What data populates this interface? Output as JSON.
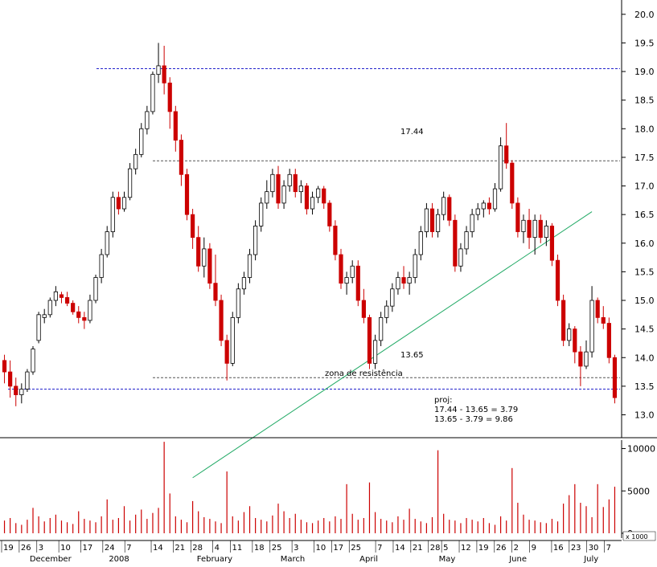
{
  "chart_data": [
    {
      "type": "candlestick",
      "panel": "price",
      "y_axis_side": "right",
      "ylim": [
        12.6,
        20.25
      ],
      "yticks": [
        13.0,
        13.5,
        14.0,
        14.5,
        15.0,
        15.5,
        16.0,
        16.5,
        17.0,
        17.5,
        18.0,
        18.5,
        19.0,
        19.5,
        20.0
      ],
      "ytick_labels": [
        "13.0",
        "13.5",
        "14.0",
        "14.5",
        "15.0",
        "15.5",
        "16.0",
        "16.5",
        "17.0",
        "17.5",
        "18.0",
        "18.5",
        "19.0",
        "19.5",
        "20.0"
      ],
      "up_color": "#000000",
      "down_color": "#cc0000",
      "ohlc": [
        [
          13.95,
          14.05,
          13.55,
          13.75
        ],
        [
          13.75,
          13.95,
          13.3,
          13.5
        ],
        [
          13.5,
          13.65,
          13.15,
          13.35
        ],
        [
          13.35,
          13.55,
          13.2,
          13.45
        ],
        [
          13.45,
          13.8,
          13.4,
          13.75
        ],
        [
          13.75,
          14.2,
          13.7,
          14.15
        ],
        [
          14.3,
          14.8,
          14.25,
          14.75
        ],
        [
          14.7,
          14.85,
          14.6,
          14.75
        ],
        [
          14.75,
          15.05,
          14.7,
          15.0
        ],
        [
          15.0,
          15.25,
          14.9,
          15.15
        ],
        [
          15.1,
          15.15,
          14.95,
          15.05
        ],
        [
          15.05,
          15.15,
          14.9,
          14.95
        ],
        [
          14.95,
          15.0,
          14.75,
          14.8
        ],
        [
          14.8,
          14.9,
          14.6,
          14.7
        ],
        [
          14.7,
          14.8,
          14.5,
          14.65
        ],
        [
          14.65,
          15.1,
          14.6,
          15.0
        ],
        [
          15.0,
          15.45,
          14.95,
          15.4
        ],
        [
          15.4,
          15.9,
          15.3,
          15.8
        ],
        [
          15.8,
          16.3,
          15.75,
          16.2
        ],
        [
          16.2,
          16.9,
          16.1,
          16.8
        ],
        [
          16.8,
          16.9,
          16.5,
          16.6
        ],
        [
          16.6,
          16.9,
          16.55,
          16.8
        ],
        [
          16.8,
          17.4,
          16.75,
          17.3
        ],
        [
          17.3,
          17.65,
          17.2,
          17.55
        ],
        [
          17.55,
          18.1,
          17.5,
          18.0
        ],
        [
          18.0,
          18.4,
          17.9,
          18.3
        ],
        [
          18.3,
          19.0,
          18.25,
          18.95
        ],
        [
          18.95,
          19.5,
          18.8,
          19.1
        ],
        [
          19.1,
          19.45,
          18.6,
          18.8
        ],
        [
          18.8,
          18.9,
          18.0,
          18.3
        ],
        [
          18.3,
          18.4,
          17.6,
          17.8
        ],
        [
          17.8,
          17.9,
          17.0,
          17.2
        ],
        [
          17.2,
          17.3,
          16.4,
          16.5
        ],
        [
          16.5,
          16.6,
          15.9,
          16.1
        ],
        [
          16.1,
          16.3,
          15.5,
          15.6
        ],
        [
          15.6,
          16.1,
          15.4,
          15.9
        ],
        [
          15.9,
          16.0,
          15.2,
          15.3
        ],
        [
          15.3,
          15.8,
          14.9,
          15.0
        ],
        [
          15.0,
          15.1,
          14.2,
          14.3
        ],
        [
          14.3,
          14.4,
          13.6,
          13.9
        ],
        [
          13.9,
          14.8,
          13.85,
          14.7
        ],
        [
          14.7,
          15.3,
          14.6,
          15.2
        ],
        [
          15.2,
          15.5,
          15.1,
          15.4
        ],
        [
          15.4,
          15.9,
          15.3,
          15.8
        ],
        [
          15.8,
          16.4,
          15.7,
          16.3
        ],
        [
          16.3,
          16.8,
          16.2,
          16.7
        ],
        [
          16.7,
          17.1,
          16.6,
          16.9
        ],
        [
          16.9,
          17.3,
          16.8,
          17.2
        ],
        [
          17.2,
          17.35,
          16.6,
          16.7
        ],
        [
          16.7,
          17.1,
          16.6,
          17.0
        ],
        [
          17.0,
          17.3,
          16.9,
          17.2
        ],
        [
          17.2,
          17.3,
          16.8,
          16.9
        ],
        [
          16.9,
          17.1,
          16.7,
          17.0
        ],
        [
          17.0,
          17.05,
          16.5,
          16.6
        ],
        [
          16.6,
          16.9,
          16.5,
          16.8
        ],
        [
          16.8,
          17.0,
          16.7,
          16.95
        ],
        [
          16.95,
          17.0,
          16.6,
          16.7
        ],
        [
          16.7,
          16.75,
          16.2,
          16.3
        ],
        [
          16.3,
          16.4,
          15.7,
          15.8
        ],
        [
          15.8,
          15.9,
          15.2,
          15.3
        ],
        [
          15.3,
          15.5,
          15.1,
          15.4
        ],
        [
          15.4,
          15.7,
          15.3,
          15.6
        ],
        [
          15.6,
          15.7,
          14.9,
          15.0
        ],
        [
          15.0,
          15.2,
          14.6,
          14.7
        ],
        [
          14.7,
          14.75,
          13.8,
          13.9
        ],
        [
          13.9,
          14.4,
          13.8,
          14.3
        ],
        [
          14.3,
          14.8,
          14.2,
          14.7
        ],
        [
          14.7,
          15.0,
          14.6,
          14.9
        ],
        [
          14.9,
          15.3,
          14.8,
          15.2
        ],
        [
          15.2,
          15.5,
          15.1,
          15.4
        ],
        [
          15.4,
          15.6,
          15.2,
          15.3
        ],
        [
          15.3,
          15.5,
          15.1,
          15.4
        ],
        [
          15.4,
          15.9,
          15.3,
          15.8
        ],
        [
          15.8,
          16.3,
          15.7,
          16.2
        ],
        [
          16.2,
          16.7,
          16.1,
          16.6
        ],
        [
          16.6,
          16.7,
          16.1,
          16.2
        ],
        [
          16.2,
          16.6,
          16.1,
          16.5
        ],
        [
          16.5,
          16.9,
          16.4,
          16.8
        ],
        [
          16.8,
          16.85,
          16.3,
          16.4
        ],
        [
          16.4,
          16.5,
          15.5,
          15.6
        ],
        [
          15.6,
          16.0,
          15.5,
          15.9
        ],
        [
          15.9,
          16.3,
          15.8,
          16.2
        ],
        [
          16.2,
          16.6,
          16.1,
          16.5
        ],
        [
          16.5,
          16.7,
          16.4,
          16.6
        ],
        [
          16.6,
          16.75,
          16.45,
          16.7
        ],
        [
          16.7,
          16.8,
          16.5,
          16.6
        ],
        [
          16.6,
          17.05,
          16.55,
          16.95
        ],
        [
          16.95,
          17.85,
          16.9,
          17.7
        ],
        [
          17.7,
          18.1,
          17.3,
          17.4
        ],
        [
          17.4,
          17.45,
          16.6,
          16.7
        ],
        [
          16.7,
          16.8,
          16.1,
          16.2
        ],
        [
          16.2,
          16.5,
          16.0,
          16.4
        ],
        [
          16.4,
          16.6,
          15.9,
          16.1
        ],
        [
          16.1,
          16.5,
          15.8,
          16.4
        ],
        [
          16.4,
          16.5,
          16.0,
          16.1
        ],
        [
          16.1,
          16.4,
          15.95,
          16.3
        ],
        [
          16.3,
          16.35,
          15.6,
          15.7
        ],
        [
          15.7,
          15.8,
          14.9,
          15.0
        ],
        [
          15.0,
          15.1,
          14.2,
          14.3
        ],
        [
          14.3,
          14.6,
          14.2,
          14.5
        ],
        [
          14.5,
          14.55,
          13.9,
          14.1
        ],
        [
          14.1,
          14.2,
          13.5,
          13.85
        ],
        [
          13.85,
          14.3,
          13.8,
          14.1
        ],
        [
          14.1,
          15.25,
          14.0,
          15.0
        ],
        [
          15.0,
          15.05,
          14.6,
          14.7
        ],
        [
          14.7,
          14.9,
          14.5,
          14.6
        ],
        [
          14.6,
          14.7,
          13.9,
          14.0
        ],
        [
          14.0,
          14.05,
          13.2,
          13.3
        ]
      ],
      "price_labels": [
        "17.44",
        "13.65"
      ],
      "reference_lines": [
        {
          "value": 19.05,
          "color": "#2222cc",
          "style": "dashed"
        },
        {
          "value": 17.44,
          "color": "#555555",
          "style": "dashed"
        },
        {
          "value": 13.65,
          "color": "#555555",
          "style": "dashed"
        },
        {
          "value": 13.45,
          "color": "#2222cc",
          "style": "dashed"
        }
      ],
      "annotations": {
        "resistance_label": "zona de resistência",
        "proj_title": "proj:",
        "proj_line1": "17.44 - 13.65 = 3.79",
        "proj_line2": "13.65 - 3.79 = 9.86"
      },
      "trendline": {
        "color": "#22aa66",
        "from_index": 33,
        "from_value": 11.9,
        "to_index": 103,
        "to_value": 16.55
      }
    },
    {
      "type": "bar",
      "panel": "volume",
      "y_axis_side": "right",
      "ylim": [
        0,
        11000
      ],
      "yticks": [
        0,
        5000,
        10000
      ],
      "ytick_labels": [
        "0",
        "5000",
        "10000"
      ],
      "unit_label": "x 1000",
      "bar_color": "#cc0000",
      "values": [
        1500,
        1800,
        1200,
        1000,
        1600,
        3000,
        2000,
        1400,
        1800,
        2200,
        1500,
        1300,
        1100,
        2600,
        1700,
        1500,
        1300,
        2000,
        4000,
        1600,
        1800,
        3200,
        1500,
        2200,
        2800,
        1700,
        2400,
        3000,
        10800,
        4700,
        2000,
        1600,
        1300,
        3800,
        2600,
        1900,
        1700,
        1400,
        1200,
        7300,
        2000,
        1500,
        2500,
        3200,
        1800,
        1600,
        1400,
        2100,
        3500,
        2600,
        1800,
        2300,
        1600,
        1300,
        1200,
        1500,
        1800,
        1400,
        2000,
        1700,
        5800,
        2300,
        1600,
        1800,
        6000,
        2500,
        1700,
        1500,
        1300,
        2000,
        1600,
        2900,
        1700,
        1400,
        1200,
        1900,
        9800,
        2300,
        1600,
        1500,
        1200,
        1800,
        1600,
        1400,
        1800,
        1200,
        1000,
        2000,
        1500,
        7700,
        3600,
        2200,
        1600,
        1500,
        1300,
        1200,
        1700,
        1400,
        3500,
        4500,
        5800,
        3600,
        3200,
        1900,
        5800,
        3100,
        4000,
        5500
      ]
    },
    {
      "type": "date_axis",
      "tick_labels": [
        {
          "index": 0,
          "label": "19"
        },
        {
          "index": 4,
          "label": "26"
        },
        {
          "index": 8,
          "label": "3"
        },
        {
          "index": 13,
          "label": "10"
        },
        {
          "index": 18,
          "label": "17"
        },
        {
          "index": 23,
          "label": "24"
        },
        {
          "index": 28,
          "label": "7"
        },
        {
          "index": 34,
          "label": "14"
        },
        {
          "index": 39,
          "label": "21"
        },
        {
          "index": 43,
          "label": "28"
        },
        {
          "index": 48,
          "label": "4"
        },
        {
          "index": 52,
          "label": "11"
        },
        {
          "index": 57,
          "label": "18"
        },
        {
          "index": 61,
          "label": "25"
        },
        {
          "index": 66,
          "label": "3"
        },
        {
          "index": 71,
          "label": "10"
        },
        {
          "index": 75,
          "label": "17"
        },
        {
          "index": 79,
          "label": "25"
        },
        {
          "index": 85,
          "label": "7"
        },
        {
          "index": 89,
          "label": "14"
        },
        {
          "index": 93,
          "label": "21"
        },
        {
          "index": 97,
          "label": "28"
        },
        {
          "index": 100,
          "label": "5"
        },
        {
          "index": 104,
          "label": "12"
        },
        {
          "index": 108,
          "label": "19"
        },
        {
          "index": 112,
          "label": "26"
        },
        {
          "index": 116,
          "label": "2"
        },
        {
          "index": 120,
          "label": "9"
        },
        {
          "index": 125,
          "label": "16"
        },
        {
          "index": 129,
          "label": "23"
        },
        {
          "index": 133,
          "label": "30"
        },
        {
          "index": 137,
          "label": "7"
        }
      ],
      "month_labels": [
        {
          "index": 6,
          "label": "December"
        },
        {
          "index": 24,
          "label": "2008"
        },
        {
          "index": 44,
          "label": "February"
        },
        {
          "index": 63,
          "label": "March"
        },
        {
          "index": 81,
          "label": "April"
        },
        {
          "index": 99,
          "label": "May"
        },
        {
          "index": 115,
          "label": "June"
        },
        {
          "index": 132,
          "label": "July"
        }
      ]
    }
  ]
}
